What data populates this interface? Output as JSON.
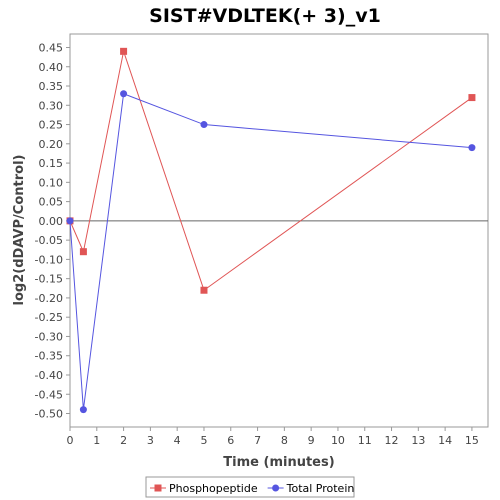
{
  "chart_data": {
    "type": "line",
    "title": "SIST#VDLTEK(+ 3)_v1",
    "xlabel": "Time (minutes)",
    "ylabel": "log2(dDAVP/Control)",
    "xlim": [
      0,
      15.6
    ],
    "ylim": [
      -0.535,
      0.485
    ],
    "x_ticks": [
      0,
      1,
      2,
      3,
      4,
      5,
      6,
      7,
      8,
      9,
      10,
      11,
      12,
      13,
      14,
      15
    ],
    "y_ticks": [
      -0.5,
      -0.45,
      -0.4,
      -0.35,
      -0.3,
      -0.25,
      -0.2,
      -0.15,
      -0.1,
      -0.05,
      0.0,
      0.05,
      0.1,
      0.15,
      0.2,
      0.25,
      0.3,
      0.35,
      0.4,
      0.45
    ],
    "zero_line": true,
    "grid": false,
    "legend_position": "bottom",
    "series": [
      {
        "name": "Phosphopeptide",
        "color": "#e05555",
        "marker": "square",
        "x": [
          0,
          0.5,
          2,
          5,
          15
        ],
        "y": [
          0.0,
          -0.08,
          0.44,
          -0.18,
          0.32
        ]
      },
      {
        "name": "Total Protein",
        "color": "#5555e0",
        "marker": "circle",
        "x": [
          0,
          0.5,
          2,
          5,
          15
        ],
        "y": [
          0.0,
          -0.49,
          0.33,
          0.25,
          0.19
        ]
      }
    ]
  }
}
